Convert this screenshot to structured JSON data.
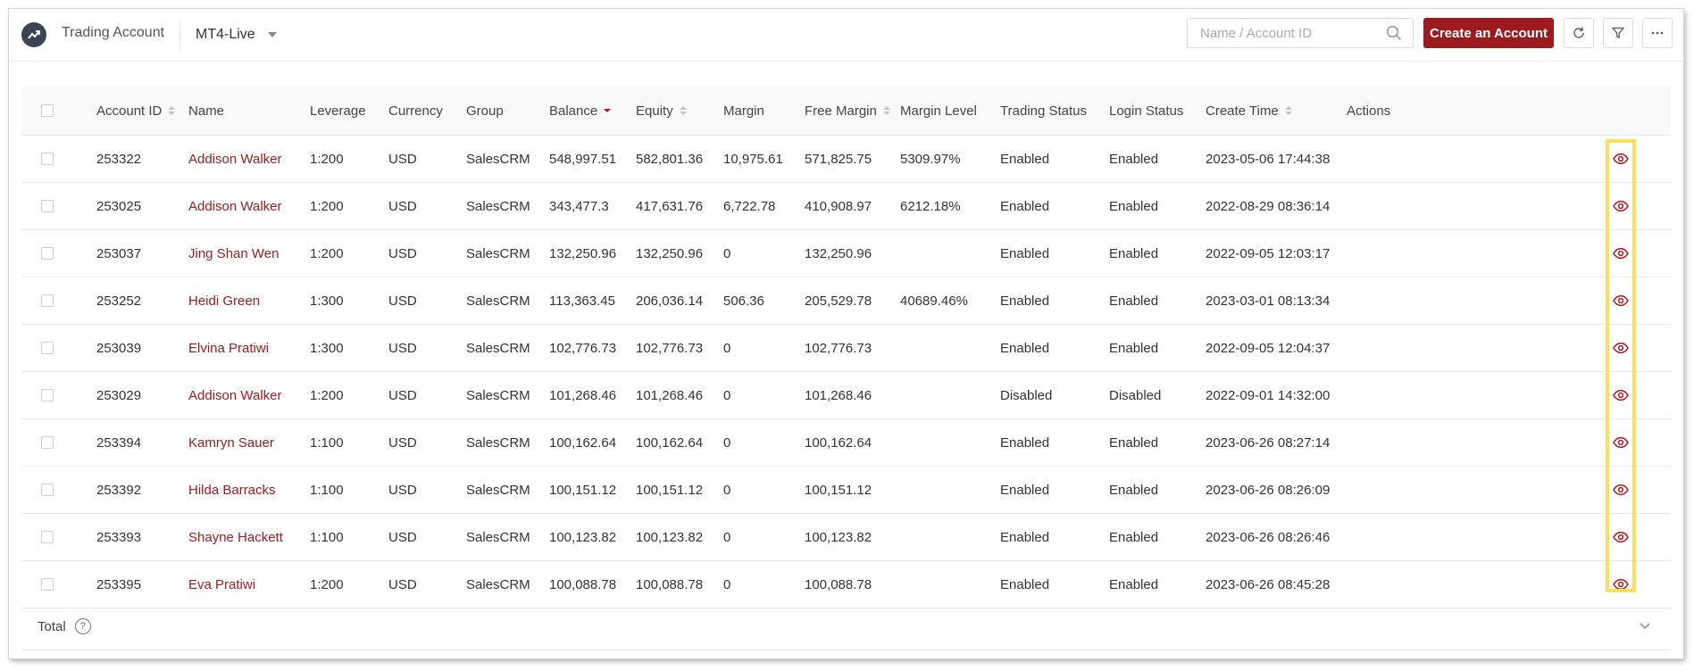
{
  "header": {
    "title": "Trading Account",
    "server": "MT4-Live",
    "search_placeholder": "Name / Account ID",
    "create_label": "Create an Account"
  },
  "icons": {
    "logo": "trending-chart-icon",
    "search": "search-icon",
    "refresh": "refresh-icon",
    "filter": "filter-icon",
    "more": "more-horizontal-icon",
    "view": "eye-icon"
  },
  "colors": {
    "brand": "#9b1b1e",
    "highlight": "#f7e05a"
  },
  "table": {
    "columns": [
      {
        "label": "Account ID",
        "sortable": true
      },
      {
        "label": "Name",
        "sortable": false
      },
      {
        "label": "Leverage",
        "sortable": false
      },
      {
        "label": "Currency",
        "sortable": false
      },
      {
        "label": "Group",
        "sortable": false
      },
      {
        "label": "Balance",
        "sortable": true,
        "sort": "desc"
      },
      {
        "label": "Equity",
        "sortable": true
      },
      {
        "label": "Margin",
        "sortable": false
      },
      {
        "label": "Free Margin",
        "sortable": true
      },
      {
        "label": "Margin Level",
        "sortable": false
      },
      {
        "label": "Trading Status",
        "sortable": false
      },
      {
        "label": "Login Status",
        "sortable": false
      },
      {
        "label": "Create Time",
        "sortable": true
      },
      {
        "label": "Actions",
        "sortable": false
      }
    ],
    "rows": [
      [
        "253322",
        "Addison Walker",
        "1:200",
        "USD",
        "SalesCRM",
        "548,997.51",
        "582,801.36",
        "10,975.61",
        "571,825.75",
        "5309.97%",
        "Enabled",
        "Enabled",
        "2023-05-06 17:44:38"
      ],
      [
        "253025",
        "Addison Walker",
        "1:200",
        "USD",
        "SalesCRM",
        "343,477.3",
        "417,631.76",
        "6,722.78",
        "410,908.97",
        "6212.18%",
        "Enabled",
        "Enabled",
        "2022-08-29 08:36:14"
      ],
      [
        "253037",
        "Jing Shan Wen",
        "1:200",
        "USD",
        "SalesCRM",
        "132,250.96",
        "132,250.96",
        "0",
        "132,250.96",
        "",
        "Enabled",
        "Enabled",
        "2022-09-05 12:03:17"
      ],
      [
        "253252",
        "Heidi Green",
        "1:300",
        "USD",
        "SalesCRM",
        "113,363.45",
        "206,036.14",
        "506.36",
        "205,529.78",
        "40689.46%",
        "Enabled",
        "Enabled",
        "2023-03-01 08:13:34"
      ],
      [
        "253039",
        "Elvina Pratiwi",
        "1:300",
        "USD",
        "SalesCRM",
        "102,776.73",
        "102,776.73",
        "0",
        "102,776.73",
        "",
        "Enabled",
        "Enabled",
        "2022-09-05 12:04:37"
      ],
      [
        "253029",
        "Addison Walker",
        "1:200",
        "USD",
        "SalesCRM",
        "101,268.46",
        "101,268.46",
        "0",
        "101,268.46",
        "",
        "Disabled",
        "Disabled",
        "2022-09-01 14:32:00"
      ],
      [
        "253394",
        "Kamryn Sauer",
        "1:100",
        "USD",
        "SalesCRM",
        "100,162.64",
        "100,162.64",
        "0",
        "100,162.64",
        "",
        "Enabled",
        "Enabled",
        "2023-06-26 08:27:14"
      ],
      [
        "253392",
        "Hilda Barracks",
        "1:100",
        "USD",
        "SalesCRM",
        "100,151.12",
        "100,151.12",
        "0",
        "100,151.12",
        "",
        "Enabled",
        "Enabled",
        "2023-06-26 08:26:09"
      ],
      [
        "253393",
        "Shayne Hackett",
        "1:100",
        "USD",
        "SalesCRM",
        "100,123.82",
        "100,123.82",
        "0",
        "100,123.82",
        "",
        "Enabled",
        "Enabled",
        "2023-06-26 08:26:46"
      ],
      [
        "253395",
        "Eva Pratiwi",
        "1:200",
        "USD",
        "SalesCRM",
        "100,088.78",
        "100,088.78",
        "0",
        "100,088.78",
        "",
        "Enabled",
        "Enabled",
        "2023-06-26 08:45:28"
      ]
    ]
  },
  "footer": {
    "total_label": "Total"
  }
}
